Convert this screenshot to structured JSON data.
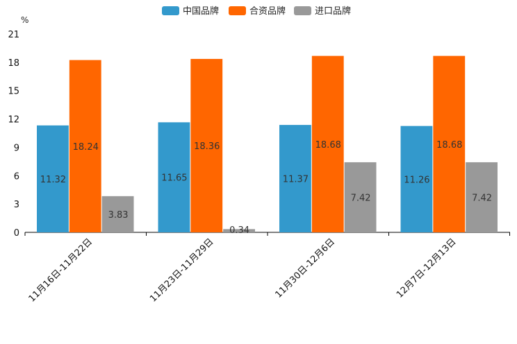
{
  "chart_data": {
    "type": "bar",
    "unit": "%",
    "categories": [
      "11月16日-11月22日",
      "11月23日-11月29日",
      "11月30日-12月6日",
      "12月7日-12月13日"
    ],
    "series": [
      {
        "name": "中国品牌",
        "color": "#3399cc",
        "values": [
          11.32,
          11.65,
          11.37,
          11.26
        ],
        "labels": [
          "11.32",
          "11.65",
          "11.37",
          "11.26"
        ]
      },
      {
        "name": "合资品牌",
        "color": "#ff6600",
        "values": [
          18.24,
          18.36,
          18.68,
          18.68
        ],
        "labels": [
          "18.24",
          "18.36",
          "18.68",
          "18.68"
        ]
      },
      {
        "name": "进口品牌",
        "color": "#999999",
        "values": [
          3.83,
          0.34,
          7.42,
          7.42
        ],
        "labels": [
          "3.83",
          "0.34",
          "7.42",
          "7.42"
        ]
      }
    ],
    "ylim": [
      0,
      21
    ],
    "yticks": [
      0,
      3,
      6,
      9,
      12,
      15,
      18,
      21
    ],
    "legend_position": "top-center",
    "grid": false
  }
}
